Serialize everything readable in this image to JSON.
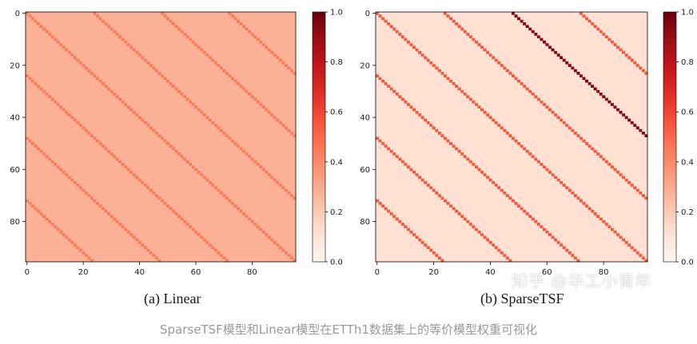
{
  "chart_data": [
    {
      "type": "heatmap",
      "title": "(a) Linear",
      "xlabel": "",
      "ylabel": "",
      "x_ticks": [
        0,
        20,
        40,
        60,
        80
      ],
      "y_ticks": [
        0,
        20,
        40,
        60,
        80
      ],
      "size": [
        96,
        96
      ],
      "xlim": [
        0,
        95
      ],
      "ylim": [
        0,
        95
      ],
      "colormap": "Reds",
      "colorbar": {
        "min": 0.0,
        "max": 1.0,
        "ticks": [
          "0.0",
          "0.2",
          "0.4",
          "0.6",
          "0.8",
          "1.0"
        ]
      },
      "pattern": {
        "background": 0.28,
        "period": 24,
        "stripe_value": 0.45,
        "stripe_offsets": [
          -72,
          -48,
          -24,
          0,
          24,
          48,
          72
        ]
      }
    },
    {
      "type": "heatmap",
      "title": "(b) SparseTSF",
      "xlabel": "",
      "ylabel": "",
      "x_ticks": [
        0,
        20,
        40,
        60,
        80
      ],
      "y_ticks": [
        0,
        20,
        40,
        60,
        80
      ],
      "size": [
        96,
        96
      ],
      "xlim": [
        0,
        95
      ],
      "ylim": [
        0,
        95
      ],
      "colormap": "Reds",
      "colorbar": {
        "min": 0.0,
        "max": 1.0,
        "ticks": [
          "0.0",
          "0.2",
          "0.4",
          "0.6",
          "0.8",
          "1.0"
        ]
      },
      "pattern": {
        "background": 0.12,
        "period": 24,
        "stripe_value": 0.55,
        "strong_offset": 48,
        "strong_value": 0.92,
        "stripe_offsets": [
          -72,
          -48,
          -24,
          0,
          24,
          48,
          72
        ]
      }
    }
  ],
  "captions": {
    "a": "(a) Linear",
    "b": "(b) SparseTSF"
  },
  "footer": "SparseTSF模型和Linear模型在ETTh1数据集上的等价模型权重可视化",
  "watermark": "知乎 @华工小青年"
}
